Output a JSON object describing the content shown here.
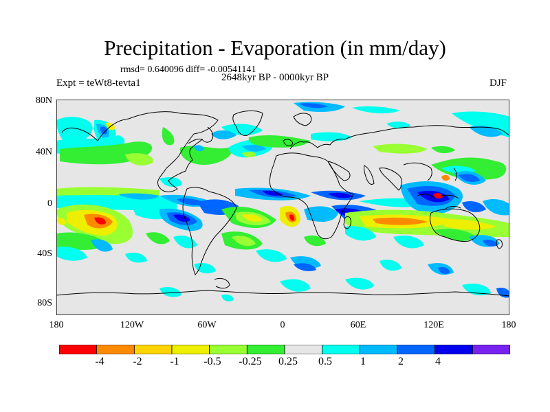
{
  "title": "Precipitation - Evaporation (in mm/day)",
  "stats": "rmsd= 0.640096 diff= -0.00541141",
  "period": "2648kyr BP - 0000kyr BP",
  "experiment": "Expt = teWt8-tevta1",
  "season": "DJF",
  "lat_labels": [
    "80N",
    "40N",
    "0",
    "40S",
    "80S"
  ],
  "lon_labels": [
    "180",
    "120W",
    "60W",
    "0",
    "60E",
    "120E",
    "180"
  ],
  "colorbar": {
    "labels": [
      "-4",
      "-2",
      "-1",
      "-0.5",
      "-0.25",
      "0.25",
      "0.5",
      "1",
      "2",
      "4"
    ],
    "colors": [
      "#ff0000",
      "#ff8a00",
      "#ffd400",
      "#eeee00",
      "#99ff33",
      "#33ee33",
      "#e6e6e6",
      "#00ffee",
      "#00bbff",
      "#0066ff",
      "#0000ee",
      "#7722ee"
    ]
  }
}
